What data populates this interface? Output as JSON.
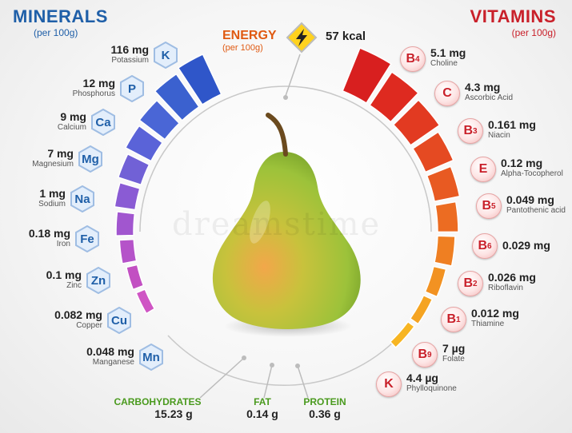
{
  "minerals": {
    "title": "MINERALS",
    "subtitle": "(per 100g)",
    "items": [
      {
        "symbol": "K",
        "value": "116 mg",
        "name": "Potassium"
      },
      {
        "symbol": "P",
        "value": "12 mg",
        "name": "Phosphorus"
      },
      {
        "symbol": "Ca",
        "value": "9 mg",
        "name": "Calcium"
      },
      {
        "symbol": "Mg",
        "value": "7 mg",
        "name": "Magnesium"
      },
      {
        "symbol": "Na",
        "value": "1 mg",
        "name": "Sodium"
      },
      {
        "symbol": "Fe",
        "value": "0.18 mg",
        "name": "Iron"
      },
      {
        "symbol": "Zn",
        "value": "0.1 mg",
        "name": "Zinc"
      },
      {
        "symbol": "Cu",
        "value": "0.082 mg",
        "name": "Copper"
      },
      {
        "symbol": "Mn",
        "value": "0.048 mg",
        "name": "Manganese"
      }
    ]
  },
  "vitamins": {
    "title": "VITAMINS",
    "subtitle": "(per 100g)",
    "items": [
      {
        "letter": "B",
        "sub": "4",
        "value": "5.1 mg",
        "name": "Choline"
      },
      {
        "letter": "C",
        "sub": "",
        "value": "4.3 mg",
        "name": "Ascorbic Acid"
      },
      {
        "letter": "B",
        "sub": "3",
        "value": "0.161 mg",
        "name": "Niacin"
      },
      {
        "letter": "E",
        "sub": "",
        "value": "0.12 mg",
        "name": "Alpha-Tocopherol"
      },
      {
        "letter": "B",
        "sub": "5",
        "value": "0.049 mg",
        "name": "Pantothenic acid"
      },
      {
        "letter": "B",
        "sub": "6",
        "value": "0.029 mg",
        "name": ""
      },
      {
        "letter": "B",
        "sub": "2",
        "value": "0.026 mg",
        "name": "Riboflavin"
      },
      {
        "letter": "B",
        "sub": "1",
        "value": "0.012 mg",
        "name": "Thiamine"
      },
      {
        "letter": "B",
        "sub": "9",
        "value": "7 µg",
        "name": "Folate"
      },
      {
        "letter": "K",
        "sub": "",
        "value": "4.4 µg",
        "name": "Phylloquinone"
      }
    ]
  },
  "energy": {
    "label": "ENERGY",
    "subtitle": "(per 100g)",
    "value": "57 kcal"
  },
  "macros": [
    {
      "label": "CARBOHYDRATES",
      "value": "15.23 g"
    },
    {
      "label": "FAT",
      "value": "0.14 g"
    },
    {
      "label": "PROTEIN",
      "value": "0.36 g"
    }
  ],
  "watermark": "dreamstime",
  "colors": {
    "minerals_title": "#1f5fa8",
    "vitamins_title": "#c9202a",
    "energy": "#e05a12",
    "macros": "#4a9a1e",
    "pear_green": "#9cc23a",
    "pear_blush": "#e9a04a"
  },
  "icons": {
    "energy": "lightning-bolt-icon",
    "fruit": "pear-icon"
  }
}
